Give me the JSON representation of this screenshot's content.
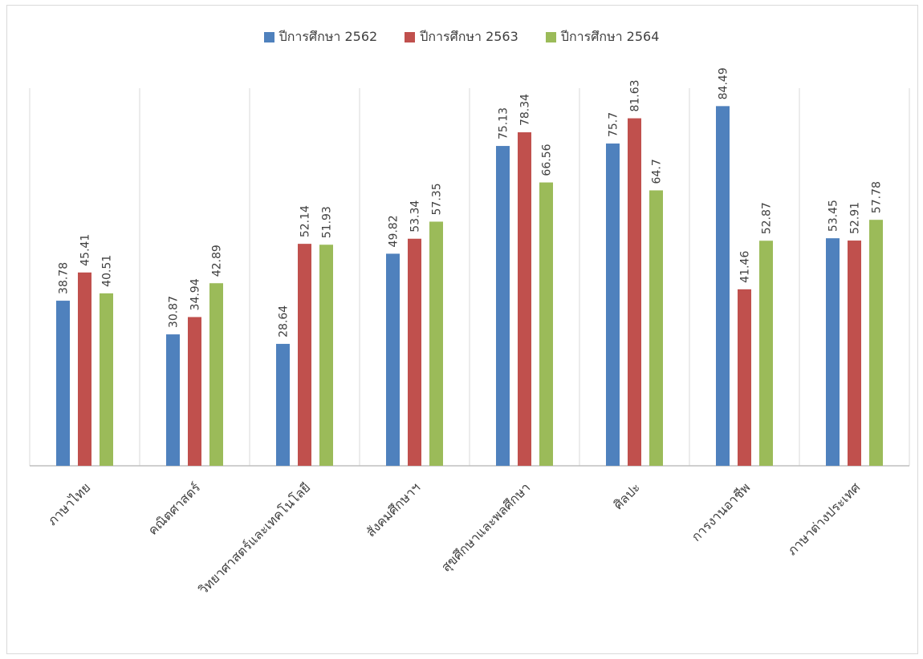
{
  "chart_data": {
    "type": "bar",
    "categories": [
      "ภาษาไทย",
      "คณิตศาสตร์",
      "วิทยาศาสตร์และเทคโนโลยี",
      "สังคมศึกษาฯ",
      "สุขศึกษาและพลศึกษา",
      "ศิลปะ",
      "การงานอาชีพ",
      "ภาษาต่างประเทศ"
    ],
    "series": [
      {
        "name": "ปีการศึกษา 2562",
        "color": "#4F81BD",
        "values": [
          38.78,
          30.87,
          28.64,
          49.82,
          75.13,
          75.7,
          84.49,
          53.45
        ]
      },
      {
        "name": "ปีการศึกษา 2563",
        "color": "#C0504D",
        "values": [
          45.41,
          34.94,
          52.14,
          53.34,
          78.34,
          81.63,
          41.46,
          52.91
        ]
      },
      {
        "name": "ปีการศึกษา 2564",
        "color": "#9BBB59",
        "values": [
          40.51,
          42.89,
          51.93,
          57.35,
          66.56,
          64.7,
          52.87,
          57.78
        ]
      }
    ],
    "ylim": [
      0,
      100
    ],
    "legend_position": "top-center",
    "grid": "vertical category separators",
    "data_labels": true
  }
}
